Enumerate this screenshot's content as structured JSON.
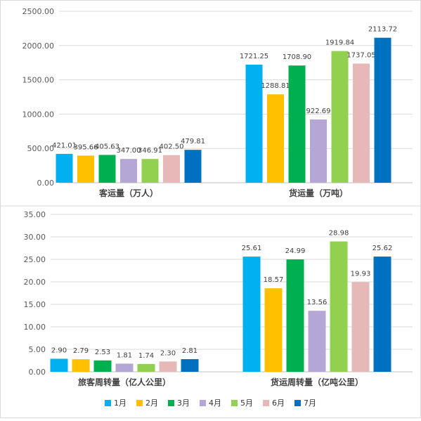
{
  "series_names": [
    "1月",
    "2月",
    "3月",
    "4月",
    "5月",
    "6月",
    "7月"
  ],
  "series_colors": [
    "#00b0f0",
    "#ffc000",
    "#00b050",
    "#b4a7d6",
    "#92d050",
    "#e6b8b7",
    "#0070c0"
  ],
  "chart_data": [
    {
      "type": "bar",
      "categories": [
        "客运量（万人）",
        "货运量（万吨）"
      ],
      "series": [
        {
          "name": "1月",
          "values": [
            421.01,
            1721.25
          ]
        },
        {
          "name": "2月",
          "values": [
            395.66,
            1288.81
          ]
        },
        {
          "name": "3月",
          "values": [
            405.63,
            1708.9
          ]
        },
        {
          "name": "4月",
          "values": [
            347.0,
            922.69
          ]
        },
        {
          "name": "5月",
          "values": [
            346.91,
            1919.84
          ]
        },
        {
          "name": "6月",
          "values": [
            402.5,
            1737.05
          ]
        },
        {
          "name": "7月",
          "values": [
            479.81,
            2113.72
          ]
        }
      ],
      "value_labels": [
        [
          "421.01",
          "1721.25"
        ],
        [
          "395.66",
          "1288.81"
        ],
        [
          "405.63",
          "1708.90"
        ],
        [
          "347.00",
          "922.69"
        ],
        [
          "346.91",
          "1919.84"
        ],
        [
          "402.50",
          "1737.05"
        ],
        [
          "479.81",
          "2113.72"
        ]
      ],
      "yticks": [
        "0.00",
        "500.00",
        "1000.00",
        "1500.00",
        "2000.00",
        "2500.00"
      ],
      "ylim": [
        0,
        2500
      ],
      "grid": true,
      "legend": "bottom"
    },
    {
      "type": "bar",
      "categories": [
        "旅客周转量（亿人公里）",
        "货运周转量（亿吨公里）"
      ],
      "series": [
        {
          "name": "1月",
          "values": [
            2.9,
            25.61
          ]
        },
        {
          "name": "2月",
          "values": [
            2.79,
            18.57
          ]
        },
        {
          "name": "3月",
          "values": [
            2.53,
            24.99
          ]
        },
        {
          "name": "4月",
          "values": [
            1.81,
            13.56
          ]
        },
        {
          "name": "5月",
          "values": [
            1.74,
            28.98
          ]
        },
        {
          "name": "6月",
          "values": [
            2.3,
            19.93
          ]
        },
        {
          "name": "7月",
          "values": [
            2.81,
            25.62
          ]
        }
      ],
      "value_labels": [
        [
          "2.90",
          "25.61"
        ],
        [
          "2.79",
          "18.57"
        ],
        [
          "2.53",
          "24.99"
        ],
        [
          "1.81",
          "13.56"
        ],
        [
          "1.74",
          "28.98"
        ],
        [
          "2.30",
          "19.93"
        ],
        [
          "2.81",
          "25.62"
        ]
      ],
      "yticks": [
        "0.00",
        "5.00",
        "10.00",
        "15.00",
        "20.00",
        "25.00",
        "30.00",
        "35.00"
      ],
      "ylim": [
        0,
        35
      ],
      "grid": true,
      "legend": "bottom"
    }
  ]
}
